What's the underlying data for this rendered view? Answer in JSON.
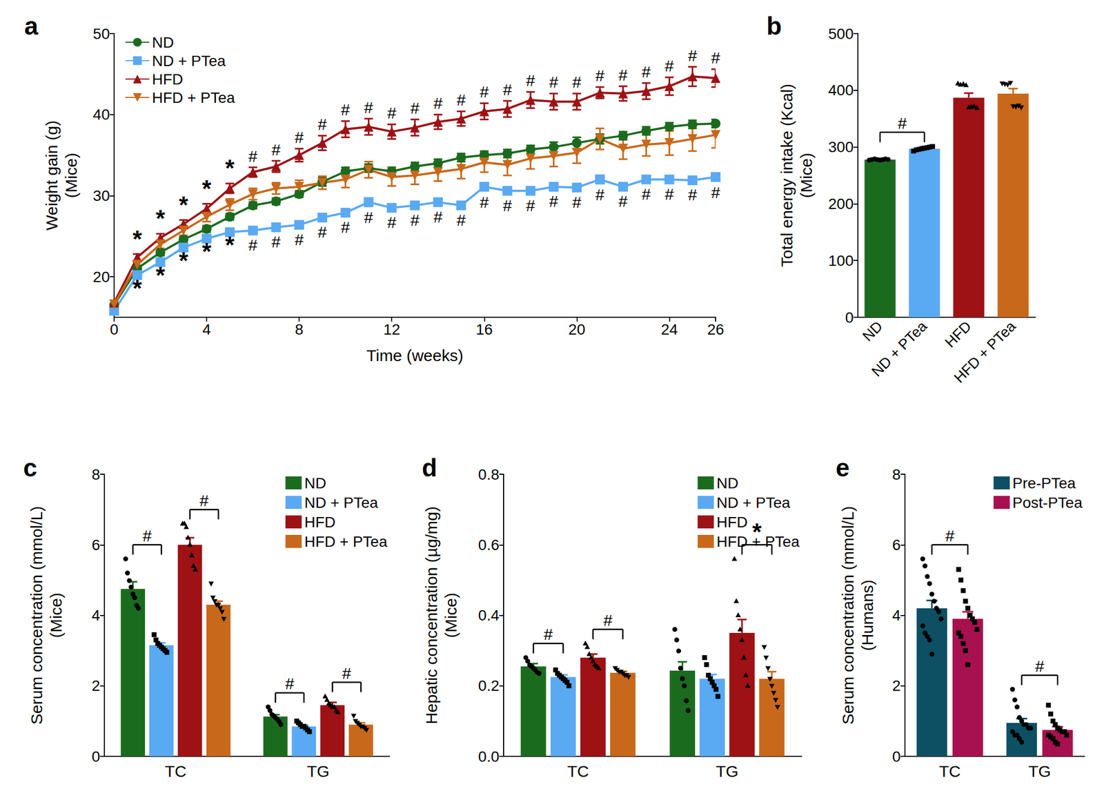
{
  "chart_data": [
    {
      "type": "line",
      "title": "a",
      "xlabel": "Time (weeks)",
      "ylabel": "Weight gain (g)\n(Mice)",
      "x": [
        0,
        1,
        2,
        3,
        4,
        5,
        6,
        7,
        8,
        9,
        10,
        11,
        12,
        13,
        14,
        15,
        16,
        17,
        18,
        19,
        20,
        21,
        22,
        23,
        24,
        25,
        26
      ],
      "xlim": [
        0,
        26
      ],
      "xticks": [
        0,
        4,
        8,
        12,
        16,
        20,
        24,
        26
      ],
      "ylim": [
        15,
        50
      ],
      "yticks": [
        20,
        30,
        40,
        50
      ],
      "grid": false,
      "legend": "upper left",
      "series": [
        {
          "name": "ND",
          "color": "#1b6b1e",
          "marker": "circle",
          "values": [
            16.5,
            21,
            23,
            24.6,
            25.9,
            27.4,
            28.8,
            29.3,
            30.2,
            31.7,
            33,
            33.4,
            33,
            33.6,
            34,
            34.7,
            35,
            35.2,
            35.7,
            36,
            36.5,
            37,
            37.4,
            38,
            38.5,
            38.8,
            38.9
          ],
          "errors": [
            0.3,
            0.4,
            0.4,
            0.4,
            0.4,
            0.4,
            0.4,
            0.4,
            0.4,
            0.5,
            0.5,
            0.5,
            0.5,
            0.5,
            0.5,
            0.5,
            0.5,
            0.5,
            0.5,
            0.6,
            0.7,
            0.6,
            0.5,
            0.5,
            0.5,
            0.5,
            0.5
          ]
        },
        {
          "name": "ND + PTea",
          "color": "#5aa9f3",
          "marker": "square",
          "values": [
            15.8,
            20.2,
            21.8,
            23.6,
            24.7,
            25.5,
            25.7,
            26.1,
            26.4,
            27.3,
            27.9,
            29.2,
            28.5,
            28.8,
            29.2,
            28.8,
            31.1,
            30.6,
            30.6,
            31.1,
            31,
            32,
            31.1,
            32,
            32,
            31.9,
            32.3
          ],
          "errors": [
            0.2,
            0.4,
            0.4,
            0.4,
            0.4,
            0.4,
            0.4,
            0.4,
            0.4,
            0.4,
            0.4,
            0.5,
            0.4,
            0.4,
            0.4,
            0.4,
            0.5,
            0.4,
            0.4,
            0.4,
            0.4,
            0.5,
            0.4,
            0.4,
            0.4,
            0.4,
            0.5
          ],
          "significance": [
            null,
            "*",
            "*",
            "*",
            "*",
            "*",
            "#",
            "#",
            "#",
            "#",
            "#",
            "#",
            "#",
            "#",
            "#",
            "#",
            "#",
            "#",
            "#",
            "#",
            "#",
            "#",
            "#",
            "#",
            "#",
            "#",
            "#"
          ]
        },
        {
          "name": "HFD",
          "color": "#9e1115",
          "marker": "triangle",
          "values": [
            16.8,
            22.4,
            24.8,
            26.5,
            28.4,
            30.9,
            32.9,
            33.6,
            35,
            36.5,
            38.2,
            38.5,
            37.9,
            38.4,
            39.1,
            39.5,
            40.4,
            40.7,
            41.8,
            41.6,
            41.6,
            42.7,
            42.6,
            42.9,
            43.5,
            44.7,
            44.5
          ],
          "errors": [
            0.3,
            0.4,
            0.5,
            0.5,
            0.6,
            0.6,
            0.6,
            0.7,
            0.8,
            0.9,
            1.0,
            1.0,
            0.9,
            1.0,
            0.9,
            0.9,
            1.0,
            1.0,
            1.0,
            1.0,
            1.0,
            0.7,
            0.9,
            1.0,
            1.1,
            1.2,
            1.1
          ],
          "significance": [
            null,
            "*",
            "*",
            "*",
            "*",
            "*",
            "#",
            "#",
            "#",
            "#",
            "#",
            "#",
            "#",
            "#",
            "#",
            "#",
            "#",
            "#",
            "#",
            "#",
            "#",
            "#",
            "#",
            "#",
            "#",
            "#",
            "#"
          ]
        },
        {
          "name": "HFD + PTea",
          "color": "#c8681a",
          "marker": "triangle-down",
          "values": [
            16.6,
            21.5,
            24,
            25.7,
            27.4,
            28.9,
            30.2,
            30.9,
            31.1,
            31.6,
            32,
            33.2,
            32.3,
            32.5,
            32.9,
            33.3,
            34.1,
            33.8,
            34.6,
            34.9,
            35.3,
            37,
            35.8,
            36.3,
            36.5,
            37,
            37.5
          ],
          "errors": [
            0.3,
            0.4,
            0.5,
            0.6,
            0.6,
            0.7,
            0.7,
            0.7,
            0.8,
            0.8,
            1.0,
            1.0,
            1.1,
            1.1,
            1.1,
            1.2,
            1.2,
            1.3,
            1.3,
            1.3,
            1.3,
            1.3,
            1.3,
            1.4,
            1.5,
            1.5,
            1.6
          ]
        }
      ]
    },
    {
      "type": "bar",
      "title": "b",
      "ylabel": "Total energy intake (Kcal)\n(Mice)",
      "categories": [
        "ND",
        "ND + PTea",
        "HFD",
        "HFD + PTea"
      ],
      "values": [
        278,
        297,
        387,
        394
      ],
      "errors": [
        2,
        4,
        8,
        9
      ],
      "colors": [
        "#1b6b1e",
        "#5aa9f3",
        "#9e1115",
        "#c8681a"
      ],
      "markers": [
        "circle",
        "square",
        "triangle",
        "triangle-down"
      ],
      "points": [
        [
          277,
          278,
          279,
          278,
          277,
          278,
          279,
          278
        ],
        [
          293,
          295,
          296,
          297,
          298,
          299,
          300,
          301
        ],
        [
          412,
          410,
          411,
          409,
          370,
          371,
          372,
          369
        ],
        [
          412,
          411,
          410,
          413,
          372,
          371,
          373,
          370
        ]
      ],
      "ylim": [
        0,
        500
      ],
      "yticks": [
        0,
        100,
        200,
        300,
        400,
        500
      ],
      "grid": false,
      "brackets": [
        {
          "from": "ND",
          "to": "ND + PTea",
          "text": "#"
        }
      ]
    },
    {
      "type": "bar",
      "title": "c",
      "ylabel": "Serum concentration (mmol/L)\n(Mice)",
      "categories": [
        "TC",
        "TG"
      ],
      "ylim": [
        0,
        8
      ],
      "yticks": [
        0,
        2,
        4,
        6,
        8
      ],
      "grid": false,
      "legend": "upper right",
      "series": [
        {
          "name": "ND",
          "color": "#1b6b1e",
          "marker": "circle",
          "values": [
            4.75,
            1.13
          ],
          "errors": [
            0.2,
            0.05
          ],
          "points": [
            [
              5.6,
              5.2,
              5.0,
              4.8,
              4.6,
              4.5,
              4.3,
              4.2
            ],
            [
              1.4,
              1.3,
              1.2,
              1.15,
              1.1,
              1.05,
              1.0,
              0.9
            ]
          ]
        },
        {
          "name": "ND + PTea",
          "color": "#5aa9f3",
          "marker": "square",
          "values": [
            3.15,
            0.85
          ],
          "errors": [
            0.07,
            0.04
          ],
          "points": [
            [
              3.45,
              3.3,
              3.2,
              3.15,
              3.1,
              3.05,
              3.0,
              2.95
            ],
            [
              1.0,
              0.95,
              0.9,
              0.85,
              0.85,
              0.8,
              0.75,
              0.7
            ]
          ]
        },
        {
          "name": "HFD",
          "color": "#9e1115",
          "marker": "triangle",
          "values": [
            6.0,
            1.45
          ],
          "errors": [
            0.2,
            0.08
          ],
          "points": [
            [
              6.6,
              6.6,
              6.5,
              6.2,
              6.0,
              5.7,
              5.4,
              5.3
            ],
            [
              1.7,
              1.6,
              1.5,
              1.45,
              1.4,
              1.4,
              1.3,
              1.25
            ]
          ]
        },
        {
          "name": "HFD + PTea",
          "color": "#c8681a",
          "marker": "triangle-down",
          "values": [
            4.3,
            0.9
          ],
          "errors": [
            0.1,
            0.05
          ],
          "points": [
            [
              4.9,
              4.5,
              4.4,
              4.3,
              4.3,
              4.2,
              4.1,
              3.9
            ],
            [
              1.15,
              1.0,
              0.95,
              0.9,
              0.85,
              0.85,
              0.8,
              0.75
            ]
          ]
        }
      ],
      "brackets": [
        {
          "category": "TC",
          "from": "ND",
          "to": "ND + PTea",
          "text": "#"
        },
        {
          "category": "TC",
          "from": "HFD",
          "to": "HFD + PTea",
          "text": "#"
        },
        {
          "category": "TG",
          "from": "ND",
          "to": "ND + PTea",
          "text": "#"
        },
        {
          "category": "TG",
          "from": "HFD",
          "to": "HFD + PTea",
          "text": "#"
        }
      ]
    },
    {
      "type": "bar",
      "title": "d",
      "ylabel": "Hepatic concentration (µg/mg)\n(Mice)",
      "categories": [
        "TC",
        "TG"
      ],
      "ylim": [
        0,
        0.8
      ],
      "yticks": [
        {
          "value": 0,
          "label": "0.0"
        },
        0.2,
        0.4,
        0.6,
        0.8
      ],
      "grid": false,
      "legend": "upper right",
      "series": [
        {
          "name": "ND",
          "color": "#1b6b1e",
          "marker": "circle",
          "values": [
            0.255,
            0.243
          ],
          "errors": [
            0.008,
            0.025
          ],
          "points": [
            [
              0.28,
              0.27,
              0.26,
              0.255,
              0.25,
              0.245,
              0.24,
              0.235
            ],
            [
              0.36,
              0.33,
              0.3,
              0.25,
              0.22,
              0.2,
              0.16,
              0.13
            ]
          ]
        },
        {
          "name": "ND + PTea",
          "color": "#5aa9f3",
          "marker": "square",
          "values": [
            0.225,
            0.22
          ],
          "errors": [
            0.006,
            0.012
          ],
          "points": [
            [
              0.245,
              0.235,
              0.23,
              0.225,
              0.22,
              0.215,
              0.21,
              0.2
            ],
            [
              0.28,
              0.26,
              0.23,
              0.22,
              0.21,
              0.2,
              0.19,
              0.17
            ]
          ]
        },
        {
          "name": "HFD",
          "color": "#9e1115",
          "marker": "triangle",
          "values": [
            0.28,
            0.35
          ],
          "errors": [
            0.01,
            0.038
          ],
          "points": [
            [
              0.32,
              0.31,
              0.29,
              0.28,
              0.27,
              0.26,
              0.255,
              0.25
            ],
            [
              0.56,
              0.44,
              0.4,
              0.36,
              0.33,
              0.28,
              0.23,
              0.2
            ]
          ]
        },
        {
          "name": "HFD + PTea",
          "color": "#c8681a",
          "marker": "triangle-down",
          "values": [
            0.237,
            0.22
          ],
          "errors": [
            0.004,
            0.02
          ],
          "points": [
            [
              0.25,
              0.245,
              0.24,
              0.24,
              0.235,
              0.23,
              0.23,
              0.225
            ],
            [
              0.31,
              0.28,
              0.25,
              0.22,
              0.2,
              0.18,
              0.16,
              0.14
            ]
          ]
        }
      ],
      "brackets": [
        {
          "category": "TC",
          "from": "ND",
          "to": "ND + PTea",
          "text": "#"
        },
        {
          "category": "TC",
          "from": "HFD",
          "to": "HFD + PTea",
          "text": "#"
        },
        {
          "category": "TG",
          "from": "HFD",
          "to": "HFD + PTea",
          "text": "*"
        }
      ]
    },
    {
      "type": "bar",
      "title": "e",
      "ylabel": "Serum concentration (mmol/L)\n(Humans)",
      "categories": [
        "TC",
        "TG"
      ],
      "ylim": [
        0,
        8
      ],
      "yticks": [
        0,
        2,
        4,
        6,
        8
      ],
      "grid": false,
      "legend": "upper right",
      "series": [
        {
          "name": "Pre-PTea",
          "color": "#0d4f63",
          "marker": "circle",
          "values": [
            4.2,
            0.95
          ],
          "errors": [
            0.22,
            0.12
          ],
          "points": [
            [
              5.6,
              5.4,
              5.1,
              4.9,
              4.6,
              4.4,
              4.2,
              4.1,
              3.9,
              3.7,
              3.5,
              3.4,
              3.3,
              2.9
            ],
            [
              1.9,
              1.6,
              1.4,
              1.1,
              1.0,
              0.9,
              0.9,
              0.8,
              0.8,
              0.7,
              0.6,
              0.6,
              0.5,
              0.4
            ]
          ]
        },
        {
          "name": "Post-PTea",
          "color": "#a8114f",
          "marker": "square",
          "values": [
            3.9,
            0.75
          ],
          "errors": [
            0.2,
            0.09
          ],
          "points": [
            [
              5.3,
              5.0,
              4.7,
              4.4,
              4.2,
              4.0,
              3.9,
              3.8,
              3.6,
              3.5,
              3.4,
              3.2,
              3.0,
              2.6
            ],
            [
              1.45,
              1.2,
              1.0,
              0.9,
              0.8,
              0.75,
              0.7,
              0.7,
              0.6,
              0.6,
              0.55,
              0.5,
              0.4,
              0.35
            ]
          ]
        }
      ],
      "brackets": [
        {
          "category": "TC",
          "from": "Pre-PTea",
          "to": "Post-PTea",
          "text": "#"
        },
        {
          "category": "TG",
          "from": "Pre-PTea",
          "to": "Post-PTea",
          "text": "#"
        }
      ]
    }
  ]
}
